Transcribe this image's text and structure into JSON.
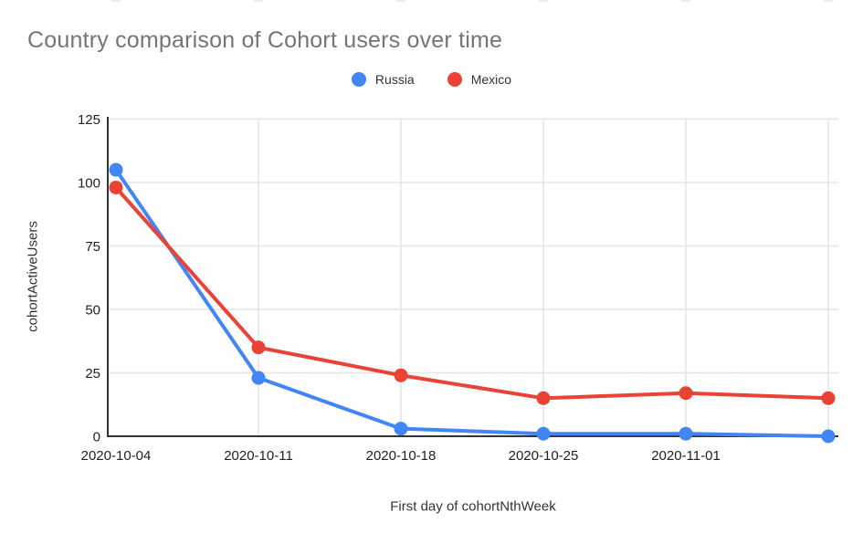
{
  "title": {
    "text": "Country comparison of Cohort users over time"
  },
  "styles": {
    "title_color": "#757575",
    "tick_label_color": "#212121",
    "grid_color": "#e6e6e6",
    "axis_color": "#333333",
    "axis_title_color": "#333333",
    "artifact_color": "#e3e3e3"
  },
  "chart_data": {
    "type": "line",
    "title": "Country comparison of Cohort users over time",
    "xlabel": "First day of cohortNthWeek",
    "ylabel": "cohortActiveUsers",
    "categories": [
      "2020-10-04",
      "2020-10-11",
      "2020-10-18",
      "2020-10-25",
      "2020-11-01",
      ""
    ],
    "series": [
      {
        "name": "Russia",
        "color": "#4285F4",
        "values": [
          105,
          23,
          3,
          1,
          1,
          0
        ]
      },
      {
        "name": "Mexico",
        "color": "#EA4335",
        "values": [
          98,
          35,
          24,
          15,
          17,
          15
        ]
      }
    ],
    "ylim": [
      0,
      125
    ],
    "yticks": [
      0,
      25,
      50,
      75,
      100,
      125
    ],
    "grid": true,
    "legend_position": "top",
    "marker": "circle",
    "line_width": 4
  }
}
